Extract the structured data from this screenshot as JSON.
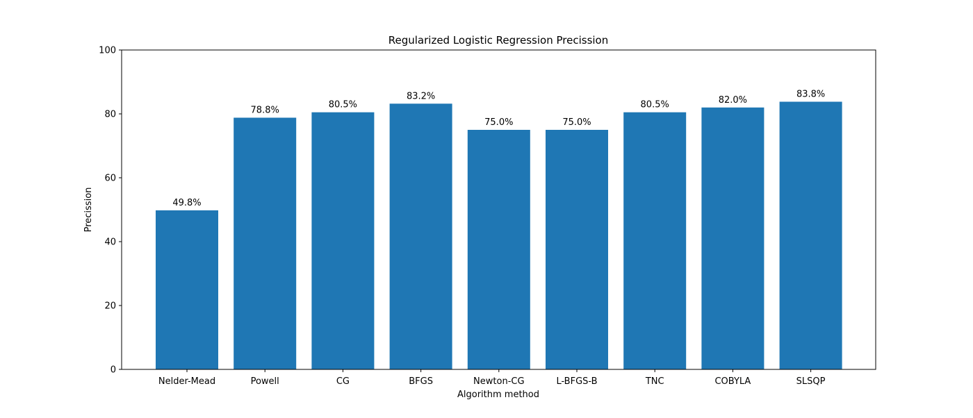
{
  "chart_data": {
    "type": "bar",
    "title": "Regularized Logistic Regression Precission",
    "xlabel": "Algorithm method",
    "ylabel": "Precission",
    "categories": [
      "Nelder-Mead",
      "Powell",
      "CG",
      "BFGS",
      "Newton-CG",
      "L-BFGS-B",
      "TNC",
      "COBYLA",
      "SLSQP"
    ],
    "values": [
      49.8,
      78.8,
      80.5,
      83.2,
      75.0,
      75.0,
      80.5,
      82.0,
      83.8
    ],
    "data_labels": [
      "49.8%",
      "78.8%",
      "80.5%",
      "83.2%",
      "75.0%",
      "75.0%",
      "80.5%",
      "82.0%",
      "83.8%"
    ],
    "ylim": [
      0,
      100
    ],
    "yticks": [
      0,
      20,
      40,
      60,
      80,
      100
    ],
    "ytick_labels": [
      "0",
      "20",
      "40",
      "60",
      "80",
      "100"
    ],
    "grid": false,
    "legend": "none",
    "bar_color": "#1f77b4"
  }
}
